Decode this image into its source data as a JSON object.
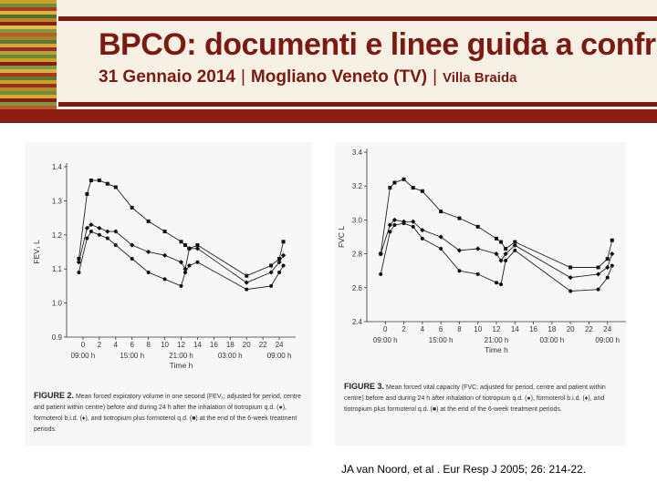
{
  "header": {
    "title": "BPCO: documenti e linee guida a confronto",
    "date": "31 Gennaio 2014",
    "place": "Mogliano Veneto (TV)",
    "venue": "Villa Braida",
    "stripe_colors": [
      "#c9a227",
      "#6f8f3a",
      "#a9381e",
      "#d9b440",
      "#4f6f2a",
      "#b8892a",
      "#8a1c12",
      "#e0c04a",
      "#7d9a42",
      "#c05a2a",
      "#a0862b",
      "#5c7a33",
      "#d6a93a",
      "#963020",
      "#b9a040",
      "#6a8a35",
      "#c9a227",
      "#8a1c12",
      "#7d9a42",
      "#d9b440",
      "#a9381e",
      "#5c7a33",
      "#c9a227",
      "#963020",
      "#b8892a",
      "#6f8f3a",
      "#d6a93a",
      "#8a1c12",
      "#7d9a42",
      "#c05a2a",
      "#a0862b",
      "#6a8a35",
      "#c9a227",
      "#a9381e"
    ]
  },
  "x_ticks": [
    "0",
    "2",
    "4",
    "6",
    "8",
    "10",
    "12",
    "14",
    "16",
    "18",
    "20",
    "22",
    "24"
  ],
  "clock_labels": [
    "09:00 h",
    "15:00 h",
    "21:00 h",
    "03:00 h",
    "09:00 h"
  ],
  "x_axis_title": "Time h",
  "chart_data": [
    {
      "type": "line",
      "ylabel": "FEV₁ L",
      "ylim": [
        0.9,
        1.4
      ],
      "yticks": [
        "0.9",
        "1.0",
        "1.1",
        "1.2",
        "1.3",
        "1.4"
      ],
      "caption_label": "FIGURE 2.",
      "caption_text": "Mean forced expiratory volume in one second (FEV₁; adjusted for period, centre and patient within centre) before and during 24 h after the inhalation of tiotropium q.d. (●), formoterol b.i.d. (♦), and tiotropium plus formoterol q.d. (■) at the end of the 6-week treatment periods.",
      "series": [
        {
          "marker": "square",
          "x": [
            -0.5,
            0.5,
            1,
            2,
            3,
            4,
            6,
            8,
            10,
            12,
            12.5,
            13,
            14,
            20,
            23,
            24,
            24.5
          ],
          "y": [
            1.13,
            1.32,
            1.36,
            1.36,
            1.35,
            1.34,
            1.28,
            1.24,
            1.21,
            1.18,
            1.17,
            1.16,
            1.17,
            1.08,
            1.11,
            1.13,
            1.18
          ]
        },
        {
          "marker": "diamond",
          "x": [
            -0.5,
            0.5,
            1,
            2,
            3,
            4,
            6,
            8,
            10,
            12,
            12.5,
            13,
            14,
            20,
            23,
            24,
            24.5
          ],
          "y": [
            1.12,
            1.22,
            1.23,
            1.22,
            1.21,
            1.21,
            1.17,
            1.15,
            1.14,
            1.12,
            1.1,
            1.16,
            1.16,
            1.06,
            1.09,
            1.12,
            1.14
          ]
        },
        {
          "marker": "circle",
          "x": [
            -0.5,
            0.5,
            1,
            2,
            3,
            4,
            6,
            8,
            10,
            12,
            12.5,
            13,
            14,
            20,
            23,
            24,
            24.5
          ],
          "y": [
            1.09,
            1.19,
            1.21,
            1.2,
            1.19,
            1.17,
            1.13,
            1.09,
            1.07,
            1.05,
            1.09,
            1.11,
            1.12,
            1.04,
            1.05,
            1.09,
            1.11
          ]
        }
      ]
    },
    {
      "type": "line",
      "ylabel": "FVC L",
      "ylim": [
        2.4,
        3.4
      ],
      "yticks": [
        "2.4",
        "2.6",
        "2.8",
        "3.0",
        "3.2",
        "3.4"
      ],
      "caption_label": "FIGURE 3.",
      "caption_text": "Mean forced vital capacity (FVC; adjusted for period, centre and patient within centre) before and during 24 h after inhalation of tiotropium q.d. (●), formoterol b.i.d. (♦), and tiotropium plus formoterol q.d. (■) at the end of the 6-week treatment periods.",
      "series": [
        {
          "marker": "square",
          "x": [
            -0.5,
            0.5,
            1,
            2,
            3,
            4,
            6,
            8,
            10,
            12,
            12.5,
            13,
            14,
            20,
            23,
            24,
            24.5
          ],
          "y": [
            2.8,
            3.19,
            3.22,
            3.24,
            3.19,
            3.17,
            3.05,
            3.01,
            2.96,
            2.89,
            2.87,
            2.83,
            2.87,
            2.72,
            2.72,
            2.77,
            2.88
          ]
        },
        {
          "marker": "diamond",
          "x": [
            -0.5,
            0.5,
            1,
            2,
            3,
            4,
            6,
            8,
            10,
            12,
            12.5,
            13,
            14,
            20,
            23,
            24,
            24.5
          ],
          "y": [
            2.8,
            2.97,
            3.0,
            2.99,
            2.99,
            2.94,
            2.9,
            2.82,
            2.83,
            2.8,
            2.76,
            2.8,
            2.85,
            2.66,
            2.68,
            2.72,
            2.8
          ]
        },
        {
          "marker": "circle",
          "x": [
            -0.5,
            0.5,
            1,
            2,
            3,
            4,
            6,
            8,
            10,
            12,
            12.5,
            13,
            14,
            20,
            23,
            24,
            24.5
          ],
          "y": [
            2.68,
            2.93,
            2.97,
            2.98,
            2.96,
            2.89,
            2.83,
            2.7,
            2.68,
            2.63,
            2.62,
            2.76,
            2.82,
            2.58,
            2.59,
            2.66,
            2.73
          ]
        }
      ]
    }
  ],
  "citation": "JA van Noord, et al . Eur Resp J 2005; 26: 214-22."
}
